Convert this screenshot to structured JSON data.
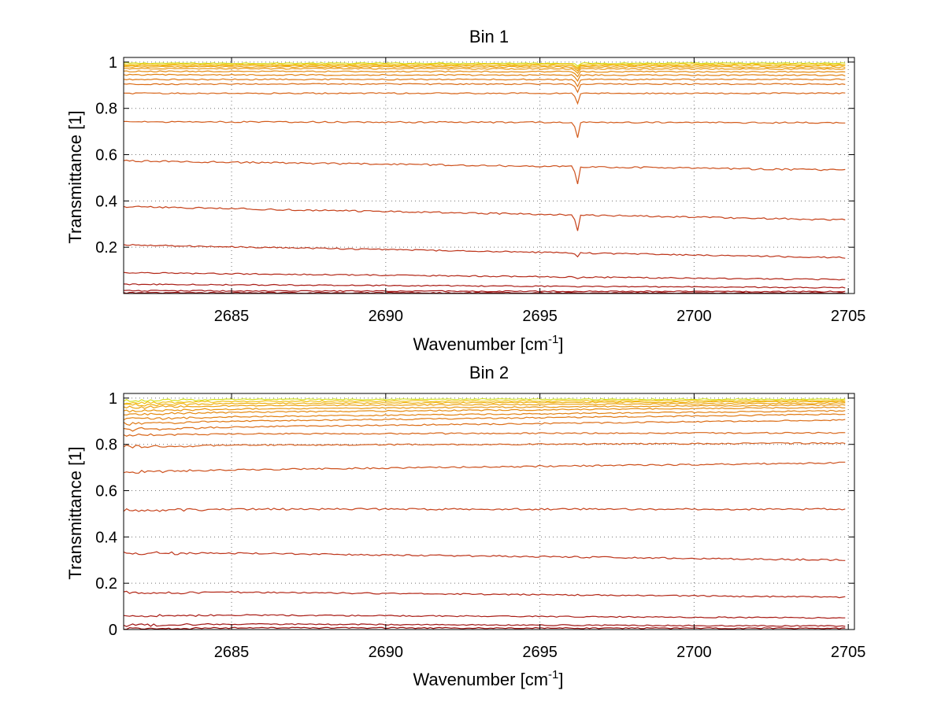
{
  "chart_data": [
    {
      "type": "line",
      "title": "Bin 1",
      "xlabel": "Wavenumber [cm",
      "xlabel_sup": "-1",
      "xlabel_end": "]",
      "ylabel": "Transmittance [1]",
      "xlim": [
        2681.5,
        2705.2
      ],
      "ylim": [
        0.0,
        1.02
      ],
      "xticks": [
        2685,
        2690,
        2695,
        2700,
        2705
      ],
      "yticks": [
        0.2,
        0.4,
        0.6,
        0.8,
        1
      ],
      "ytick_labels": [
        "0.2",
        "0.4",
        "0.6",
        "0.8",
        "1"
      ],
      "grid": true,
      "absorption_line": {
        "x": 2696.2
      },
      "series": [
        {
          "color": "#d5e01e",
          "values": [
            0.995,
            0.995
          ]
        },
        {
          "color": "#f1c114",
          "values": [
            0.99,
            0.99
          ]
        },
        {
          "color": "#efb010",
          "values": [
            0.985,
            0.985
          ]
        },
        {
          "color": "#eca20f",
          "values": [
            0.98,
            0.978
          ]
        },
        {
          "color": "#e89610",
          "values": [
            0.972,
            0.97
          ]
        },
        {
          "color": "#e58b12",
          "values": [
            0.96,
            0.958
          ]
        },
        {
          "color": "#e28214",
          "values": [
            0.945,
            0.943
          ]
        },
        {
          "color": "#e07a16",
          "values": [
            0.925,
            0.925
          ]
        },
        {
          "color": "#dc6e18",
          "values": [
            0.905,
            0.905
          ]
        },
        {
          "color": "#d8661a",
          "values": [
            0.865,
            0.865
          ]
        },
        {
          "color": "#d35c1c",
          "values": [
            0.742,
            0.738
          ]
        },
        {
          "color": "#cd501c",
          "values": [
            0.573,
            0.533
          ]
        },
        {
          "color": "#c6421b",
          "values": [
            0.375,
            0.318
          ]
        },
        {
          "color": "#bd341a",
          "values": [
            0.21,
            0.155
          ]
        },
        {
          "color": "#b32818",
          "values": [
            0.09,
            0.06
          ]
        },
        {
          "color": "#a91c16",
          "values": [
            0.04,
            0.025
          ]
        },
        {
          "color": "#a01414",
          "values": [
            0.012,
            0.008
          ]
        },
        {
          "color": "#960c0c",
          "values": [
            0.003,
            0.002
          ]
        }
      ]
    },
    {
      "type": "line",
      "title": "Bin 2",
      "xlabel": "Wavenumber [cm",
      "xlabel_sup": "-1",
      "xlabel_end": "]",
      "ylabel": "Transmittance [1]",
      "xlim": [
        2681.5,
        2705.2
      ],
      "ylim": [
        0.0,
        1.02
      ],
      "xticks": [
        2685,
        2690,
        2695,
        2700,
        2705
      ],
      "yticks": [
        0,
        0.2,
        0.4,
        0.6,
        0.8,
        1
      ],
      "ytick_labels": [
        "0",
        "0.2",
        "0.4",
        "0.6",
        "0.8",
        "1"
      ],
      "grid": true,
      "series": [
        {
          "color": "#d5e01e",
          "values": [
            0.995,
            0.995
          ]
        },
        {
          "color": "#f1c114",
          "values": [
            0.985,
            0.99
          ]
        },
        {
          "color": "#efb010",
          "values": [
            0.975,
            0.985
          ]
        },
        {
          "color": "#eca20f",
          "values": [
            0.965,
            0.978
          ]
        },
        {
          "color": "#e89610",
          "values": [
            0.95,
            0.97
          ]
        },
        {
          "color": "#e58b12",
          "values": [
            0.935,
            0.96
          ]
        },
        {
          "color": "#e28214",
          "values": [
            0.915,
            0.945
          ]
        },
        {
          "color": "#e07a16",
          "values": [
            0.895,
            0.93
          ]
        },
        {
          "color": "#dc6e18",
          "values": [
            0.87,
            0.905
          ]
        },
        {
          "color": "#d8661a",
          "values": [
            0.845,
            0.85
          ]
        },
        {
          "color": "#d35c1c",
          "values": [
            0.795,
            0.805
          ]
        },
        {
          "color": "#cd501c",
          "values": [
            0.685,
            0.72
          ]
        },
        {
          "color": "#c6421b",
          "values": [
            0.52,
            0.52
          ]
        },
        {
          "color": "#bd341a",
          "values": [
            0.335,
            0.3
          ]
        },
        {
          "color": "#b32818",
          "values": [
            0.165,
            0.14
          ]
        },
        {
          "color": "#a91c16",
          "values": [
            0.065,
            0.05
          ]
        },
        {
          "color": "#a01414",
          "values": [
            0.025,
            0.015
          ]
        },
        {
          "color": "#960c0c",
          "values": [
            0.008,
            0.005
          ]
        }
      ]
    }
  ]
}
